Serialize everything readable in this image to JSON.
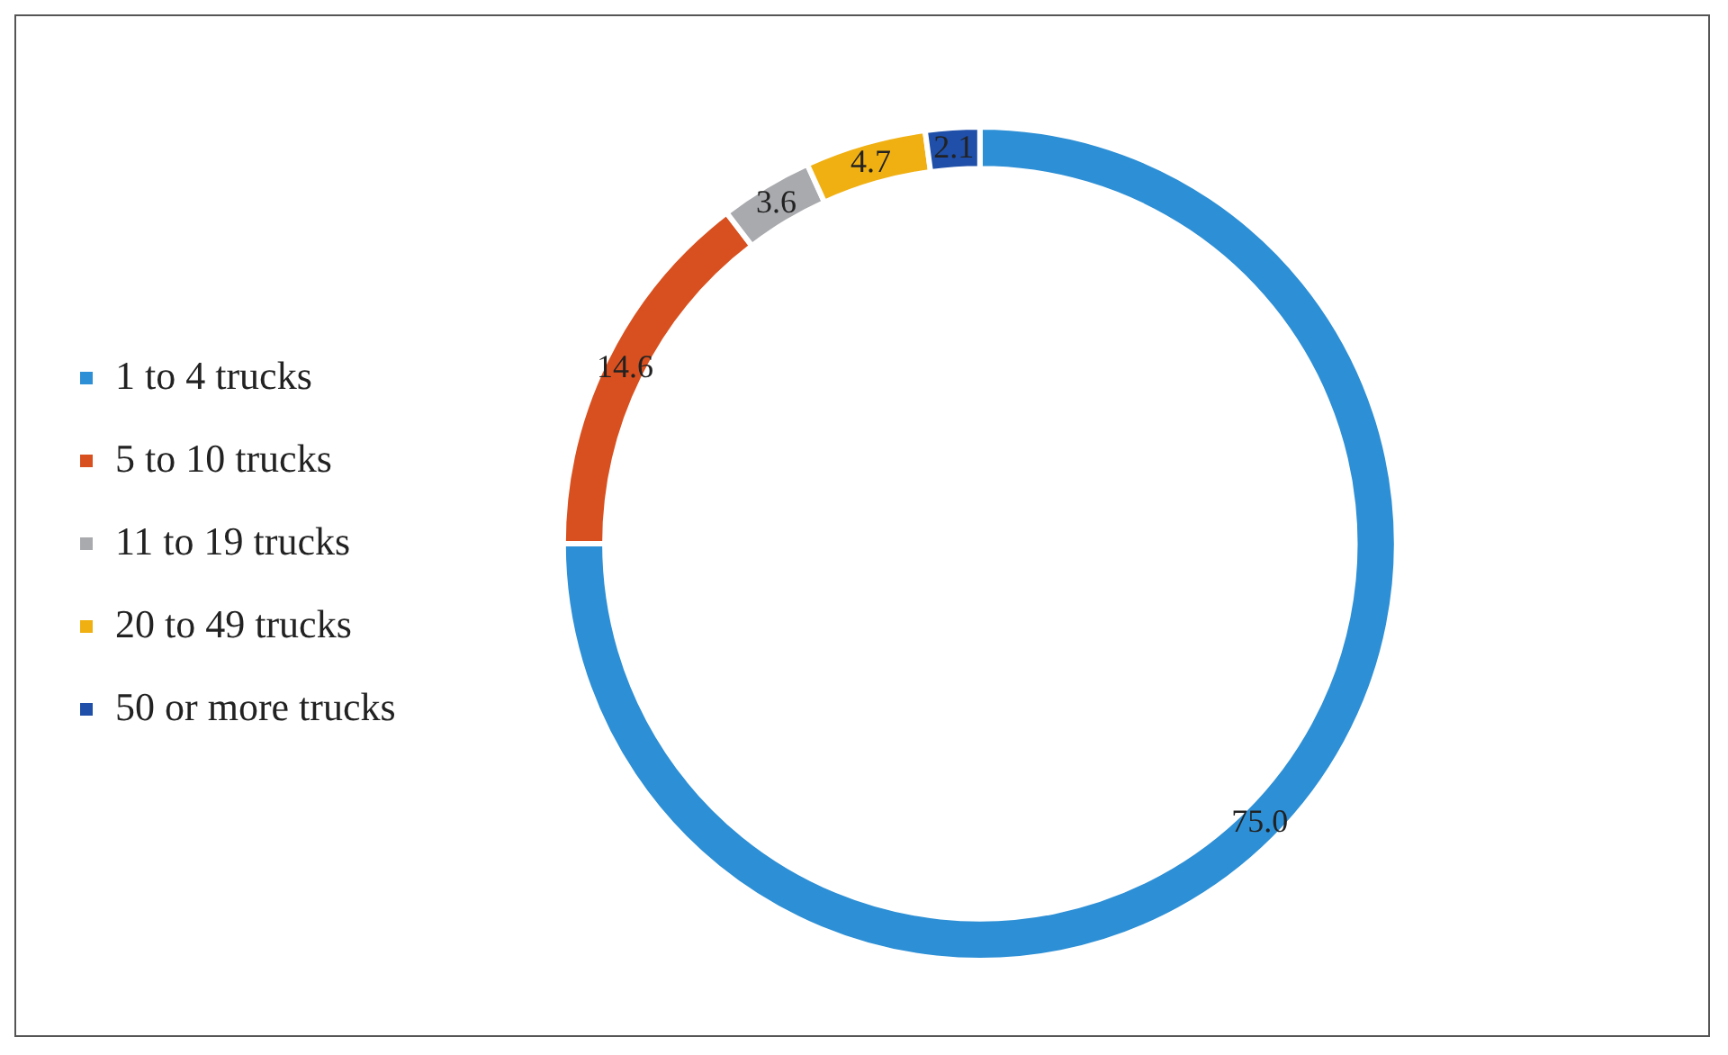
{
  "chart_data": {
    "type": "donut",
    "categories": [
      "1 to 4 trucks",
      "5 to 10 trucks",
      "11 to 19 trucks",
      "20 to 49 trucks",
      "50 or more trucks"
    ],
    "values": [
      75.0,
      14.6,
      3.6,
      4.7,
      2.1
    ],
    "colors": [
      "#2d8fd5",
      "#d8501f",
      "#a9aaae",
      "#f0b012",
      "#1f4fa8"
    ],
    "value_labels": [
      "75.0",
      "14.6",
      "3.6",
      "4.7",
      "2.1"
    ],
    "legend": "left"
  }
}
